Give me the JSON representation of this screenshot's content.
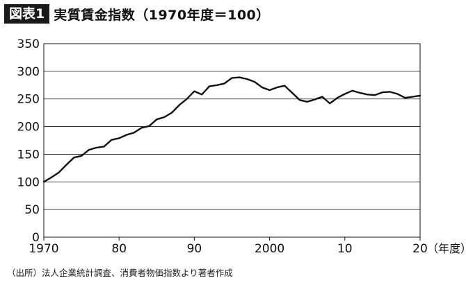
{
  "header": {
    "badge": "図表1",
    "title": "実質賃金指数（1970年度＝100）"
  },
  "source": "（出所）法人企業統計調査、消費者物価指数より著者作成",
  "chart_data": {
    "type": "line",
    "title": "実質賃金指数（1970年度＝100）",
    "xlabel": "（年度）",
    "ylabel": "",
    "xlim": [
      1970,
      2020
    ],
    "ylim": [
      0,
      350
    ],
    "grid": true,
    "y_ticks": [
      "0",
      "50",
      "100",
      "150",
      "200",
      "250",
      "300",
      "350"
    ],
    "y_tick_values": [
      0,
      50,
      100,
      150,
      200,
      250,
      300,
      350
    ],
    "x_ticks": [
      "1970",
      "80",
      "90",
      "2000",
      "10",
      "20"
    ],
    "x_tick_values": [
      1970,
      1980,
      1990,
      2000,
      2010,
      2020
    ],
    "series": [
      {
        "name": "",
        "color": "#111111",
        "x": [
          1970,
          1971,
          1972,
          1973,
          1974,
          1975,
          1976,
          1977,
          1978,
          1979,
          1980,
          1981,
          1982,
          1983,
          1984,
          1985,
          1986,
          1987,
          1988,
          1989,
          1990,
          1991,
          1992,
          1993,
          1994,
          1995,
          1996,
          1997,
          1998,
          1999,
          2000,
          2001,
          2002,
          2003,
          2004,
          2005,
          2006,
          2007,
          2008,
          2009,
          2010,
          2011,
          2012,
          2013,
          2014,
          2015,
          2016,
          2017,
          2018,
          2019,
          2020
        ],
        "values": [
          100,
          108,
          117,
          131,
          144,
          147,
          158,
          162,
          164,
          176,
          179,
          185,
          189,
          198,
          201,
          213,
          217,
          225,
          239,
          250,
          264,
          258,
          273,
          275,
          278,
          288,
          289,
          286,
          281,
          271,
          266,
          271,
          274,
          261,
          248,
          245,
          249,
          254,
          242,
          252,
          259,
          265,
          261,
          258,
          257,
          262,
          263,
          259,
          252,
          254,
          256
        ]
      }
    ]
  }
}
